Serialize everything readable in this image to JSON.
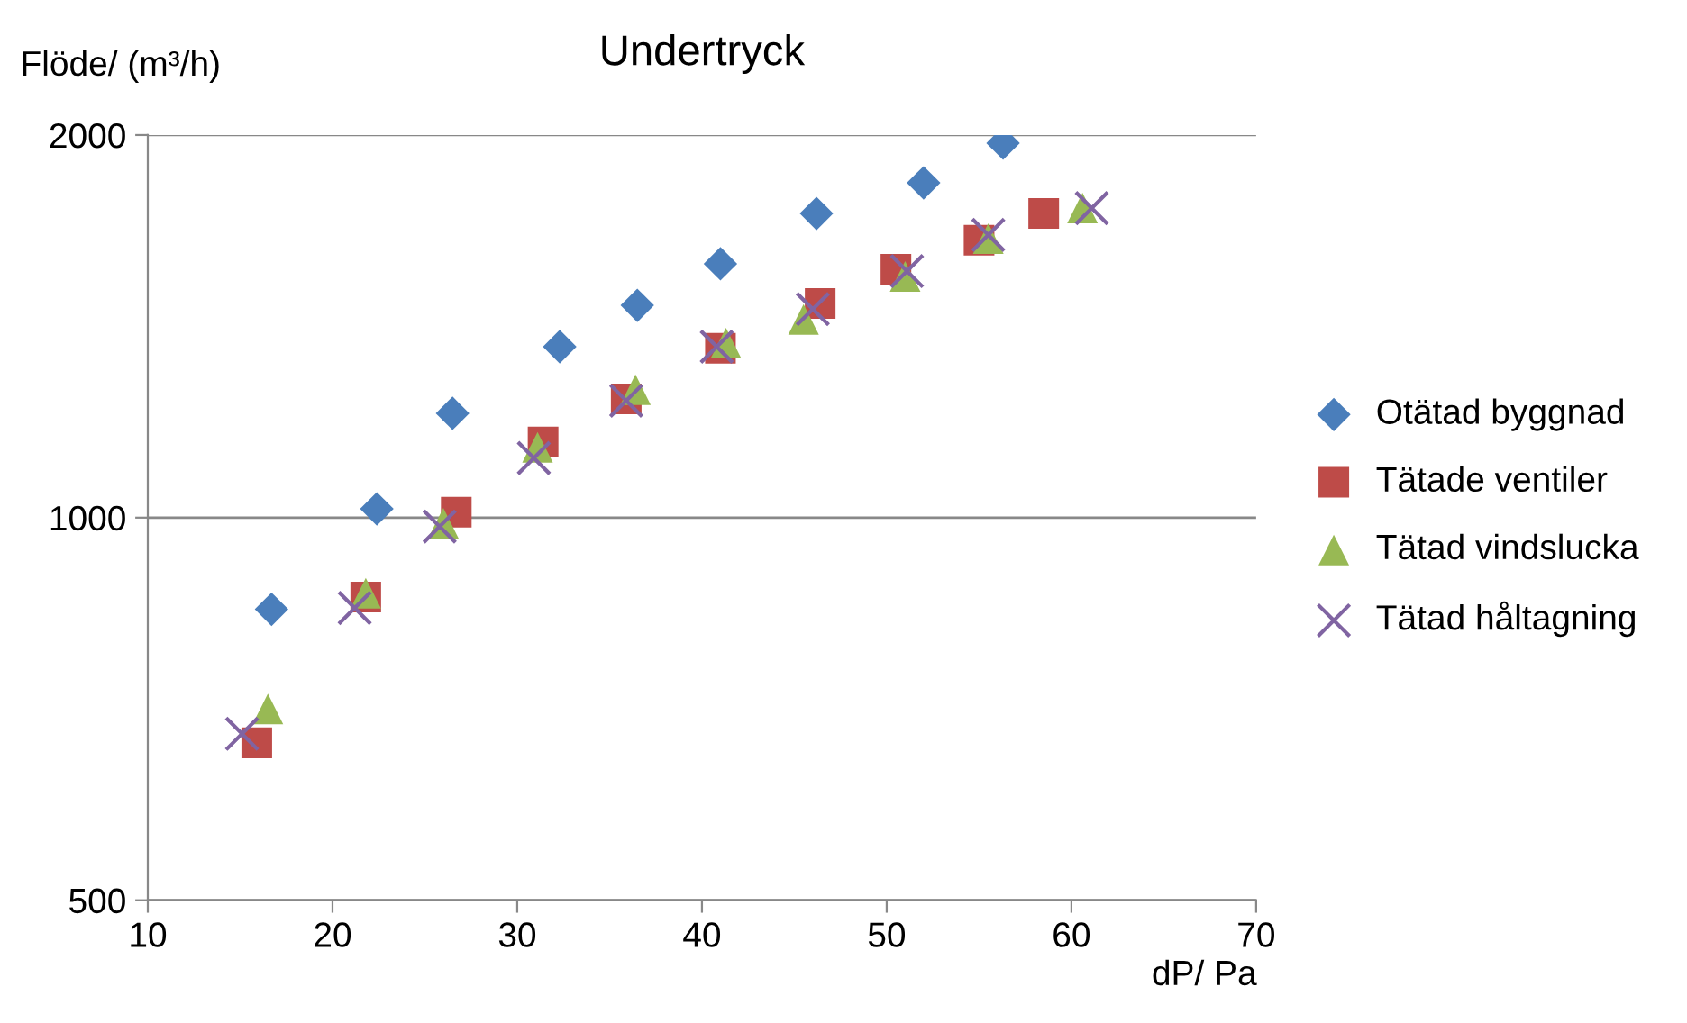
{
  "chart_data": {
    "type": "scatter",
    "title": "Undertryck",
    "xlabel": "dP/ Pa",
    "ylabel": "Flöde/ (m³/h)",
    "xlim": [
      10,
      70
    ],
    "xticks": [
      10,
      20,
      30,
      40,
      50,
      60,
      70
    ],
    "ylim": [
      500,
      2000
    ],
    "yticks": [
      500,
      1000,
      2000
    ],
    "log": "y",
    "grid": "y",
    "legend": "right",
    "series": [
      {
        "name": "Otätad byggnad",
        "color": "#4a7ebb",
        "marker": "diamond",
        "x": [
          16.7,
          22.4,
          26.5,
          32.3,
          36.5,
          41.0,
          46.2,
          52.0,
          56.3
        ],
        "values": [
          847,
          1016,
          1208,
          1363,
          1469,
          1584,
          1735,
          1834,
          1971
        ]
      },
      {
        "name": "Tätade ventiler",
        "color": "#be4b48",
        "marker": "square",
        "x": [
          15.9,
          21.8,
          26.7,
          31.4,
          35.9,
          41.0,
          46.4,
          50.5,
          55.0,
          58.5
        ],
        "values": [
          665,
          866,
          1010,
          1147,
          1240,
          1359,
          1474,
          1568,
          1653,
          1735
        ]
      },
      {
        "name": "Tätad vindslucka",
        "color": "#98b954",
        "marker": "triangle",
        "x": [
          16.5,
          21.8,
          26.0,
          31.1,
          36.4,
          41.3,
          45.5,
          51.0,
          55.5,
          60.6
        ],
        "values": [
          707,
          872,
          990,
          1136,
          1261,
          1372,
          1432,
          1548,
          1658,
          1752
        ]
      },
      {
        "name": "Tätad håltagning",
        "color": "#8064a2",
        "marker": "cross",
        "x": [
          15.1,
          21.2,
          25.8,
          30.9,
          35.9,
          40.8,
          46.0,
          51.1,
          55.5,
          61.1
        ],
        "values": [
          676,
          849,
          984,
          1114,
          1236,
          1363,
          1459,
          1563,
          1669,
          1752
        ]
      }
    ]
  }
}
